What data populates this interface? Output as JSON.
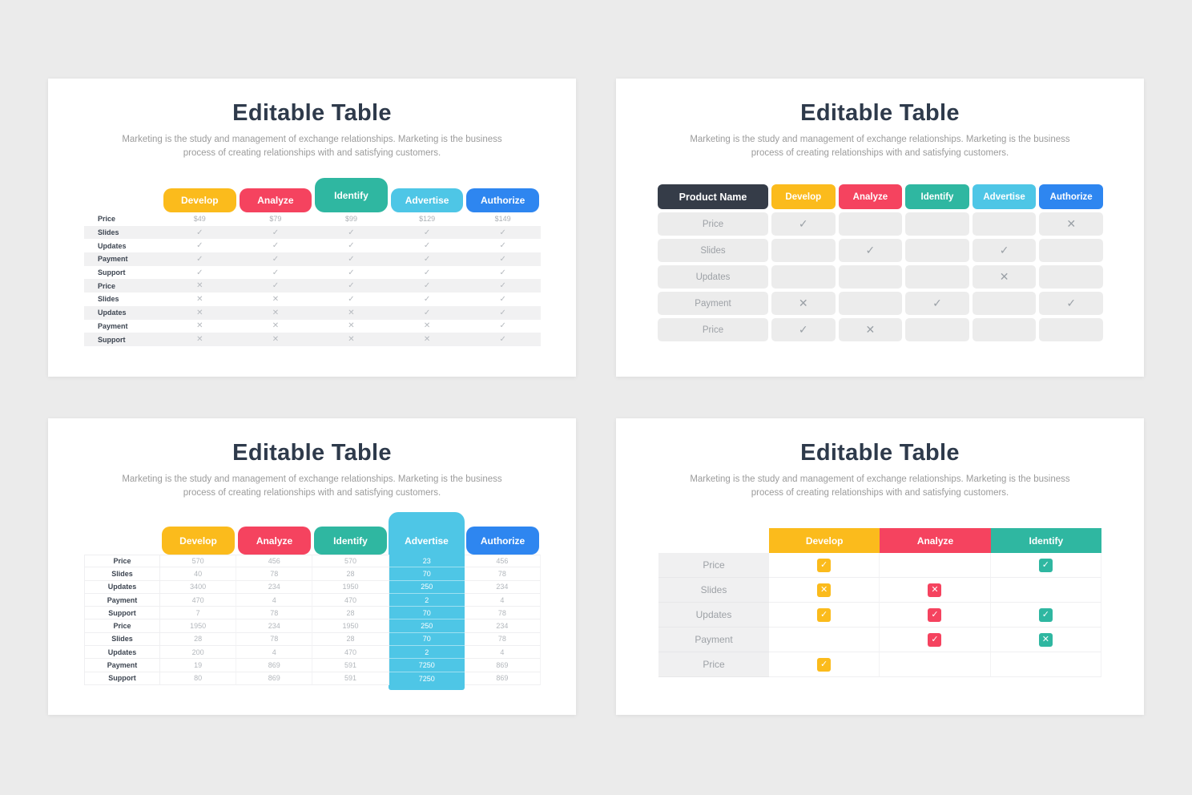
{
  "shared": {
    "title": "Editable Table",
    "subtitle": "Marketing is the study and management of exchange relationships. Marketing is the business process of creating relationships with and satisfying customers.",
    "colors": {
      "palette": [
        "#FBBB1C",
        "#F5435F",
        "#2FB7A1",
        "#4EC6E6",
        "#2E86F0"
      ],
      "develop": "#FBBB1C",
      "analyze": "#F5435F",
      "identify": "#2FB7A1",
      "advertise": "#4EC6E6",
      "authorize": "#2E86F0",
      "dark_header": "#353C48",
      "title_text": "#2E3A4B",
      "subtitle_text": "#9B9B9B",
      "muted_mark": "#9AA0A6",
      "stripe": "#F1F1F2",
      "page_bg": "#EBEBEB"
    }
  },
  "panels": [
    {
      "id": "top-left",
      "variant": "tabs-striped",
      "columns": [
        "Develop",
        "Analyze",
        "Identify",
        "Advertise",
        "Authorize"
      ],
      "tall_column": 2,
      "rows": [
        {
          "label": "Price",
          "cells": [
            "$49",
            "$79",
            "$99",
            "$129",
            "$149"
          ]
        },
        {
          "label": "Slides",
          "cells": [
            "check",
            "check",
            "check",
            "check",
            "check"
          ]
        },
        {
          "label": "Updates",
          "cells": [
            "check",
            "check",
            "check",
            "check",
            "check"
          ]
        },
        {
          "label": "Payment",
          "cells": [
            "check",
            "check",
            "check",
            "check",
            "check"
          ]
        },
        {
          "label": "Support",
          "cells": [
            "check",
            "check",
            "check",
            "check",
            "check"
          ]
        },
        {
          "label": "Price",
          "cells": [
            "x",
            "check",
            "check",
            "check",
            "check"
          ]
        },
        {
          "label": "Slides",
          "cells": [
            "x",
            "x",
            "check",
            "check",
            "check"
          ]
        },
        {
          "label": "Updates",
          "cells": [
            "x",
            "x",
            "x",
            "check",
            "check"
          ]
        },
        {
          "label": "Payment",
          "cells": [
            "x",
            "x",
            "x",
            "x",
            "check"
          ]
        },
        {
          "label": "Support",
          "cells": [
            "x",
            "x",
            "x",
            "x",
            "check"
          ]
        }
      ]
    },
    {
      "id": "top-right",
      "variant": "pill-grid",
      "header_label": "Product Name",
      "columns": [
        "Develop",
        "Analyze",
        "Identify",
        "Advertise",
        "Authorize"
      ],
      "rows": [
        {
          "label": "Price",
          "cells": [
            "check",
            "",
            "",
            "",
            "x"
          ]
        },
        {
          "label": "Slides",
          "cells": [
            "",
            "check",
            "",
            "check",
            ""
          ]
        },
        {
          "label": "Updates",
          "cells": [
            "",
            "",
            "",
            "x",
            ""
          ]
        },
        {
          "label": "Payment",
          "cells": [
            "x",
            "",
            "check",
            "",
            "check"
          ]
        },
        {
          "label": "Price",
          "cells": [
            "check",
            "x",
            "",
            "",
            ""
          ]
        }
      ]
    },
    {
      "id": "bottom-left",
      "variant": "numeric-highlight",
      "columns": [
        "Develop",
        "Analyze",
        "Identify",
        "Advertise",
        "Authorize"
      ],
      "highlight_column": 3,
      "rows": [
        {
          "label": "Price",
          "cells": [
            "570",
            "456",
            "570",
            "23",
            "456"
          ]
        },
        {
          "label": "Slides",
          "cells": [
            "40",
            "78",
            "28",
            "70",
            "78"
          ]
        },
        {
          "label": "Updates",
          "cells": [
            "3400",
            "234",
            "1950",
            "250",
            "234"
          ]
        },
        {
          "label": "Payment",
          "cells": [
            "470",
            "4",
            "470",
            "2",
            "4"
          ]
        },
        {
          "label": "Support",
          "cells": [
            "7",
            "78",
            "28",
            "70",
            "78"
          ]
        },
        {
          "label": "Price",
          "cells": [
            "1950",
            "234",
            "1950",
            "250",
            "234"
          ]
        },
        {
          "label": "Slides",
          "cells": [
            "28",
            "78",
            "28",
            "70",
            "78"
          ]
        },
        {
          "label": "Updates",
          "cells": [
            "200",
            "4",
            "470",
            "2",
            "4"
          ]
        },
        {
          "label": "Payment",
          "cells": [
            "19",
            "869",
            "591",
            "7250",
            "869"
          ]
        },
        {
          "label": "Support",
          "cells": [
            "80",
            "869",
            "591",
            "7250",
            "869"
          ]
        }
      ]
    },
    {
      "id": "bottom-right",
      "variant": "badge-grid",
      "columns": [
        "Develop",
        "Analyze",
        "Identify"
      ],
      "rows": [
        {
          "label": "Price",
          "cells": [
            "check",
            "",
            "check"
          ]
        },
        {
          "label": "Slides",
          "cells": [
            "x",
            "x",
            ""
          ]
        },
        {
          "label": "Updates",
          "cells": [
            "check",
            "check",
            "check"
          ]
        },
        {
          "label": "Payment",
          "cells": [
            "",
            "check",
            "x"
          ]
        },
        {
          "label": "Price",
          "cells": [
            "check",
            "",
            ""
          ]
        }
      ]
    }
  ]
}
